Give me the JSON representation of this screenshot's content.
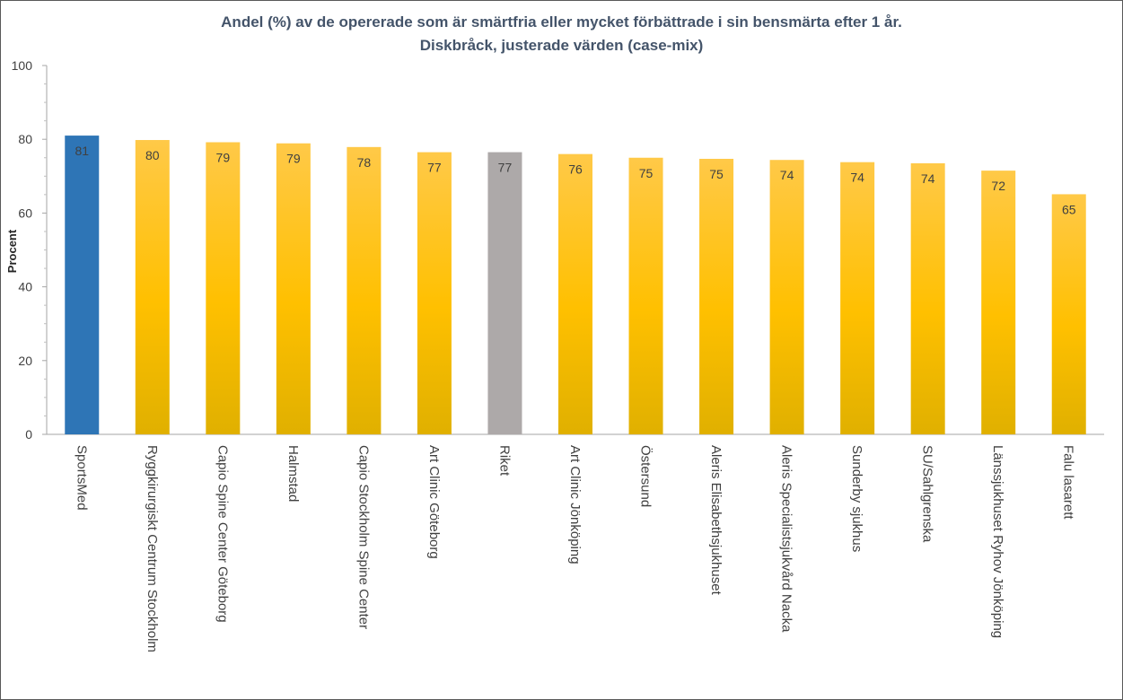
{
  "chart_data": {
    "type": "bar",
    "title": "Andel (%) av de opererade som är smärtfria eller mycket förbättrade i sin bensmärta efter 1 år.",
    "subtitle": "Diskbråck, justerade värden (case-mix)",
    "ylabel": "Procent",
    "xlabel": "",
    "ylim": [
      0,
      100
    ],
    "yticks": [
      0,
      20,
      40,
      60,
      80,
      100
    ],
    "grid": false,
    "legend": "none",
    "categories": [
      "SportsMed",
      "Ryggkirurgiskt Centrum Stockholm",
      "Capio Spine Center Göteborg",
      "Halmstad",
      "Capio Stockholm Spine Center",
      "Art Clinic Göteborg",
      "Riket",
      "Art Clinic Jönköping",
      "Östersund",
      "Aleris Elisabethsjukhuset",
      "Aleris Specialistsjukvård Nacka",
      "Sunderby sjukhus",
      "SU/Sahlgrenska",
      "Länssjukhuset Ryhov Jönköping",
      "Falu lasarett"
    ],
    "values": [
      81,
      79.8,
      79.2,
      78.9,
      77.9,
      76.5,
      76.5,
      76,
      75,
      74.7,
      74.4,
      73.8,
      73.5,
      71.5,
      65.1
    ],
    "value_labels": [
      "81",
      "80",
      "79",
      "79",
      "78",
      "77",
      "77",
      "76",
      "75",
      "75",
      "74",
      "74",
      "74",
      "72",
      "65"
    ],
    "colors": {
      "highlight": "#2E75B6",
      "national": "#ADA9A9",
      "default_top": "#FFC948",
      "default_mid": "#FFC000",
      "default_bottom": "#E0B000",
      "title": "#44546A",
      "axis": "#404040"
    },
    "highlight_index": 0,
    "national_index": 6
  }
}
